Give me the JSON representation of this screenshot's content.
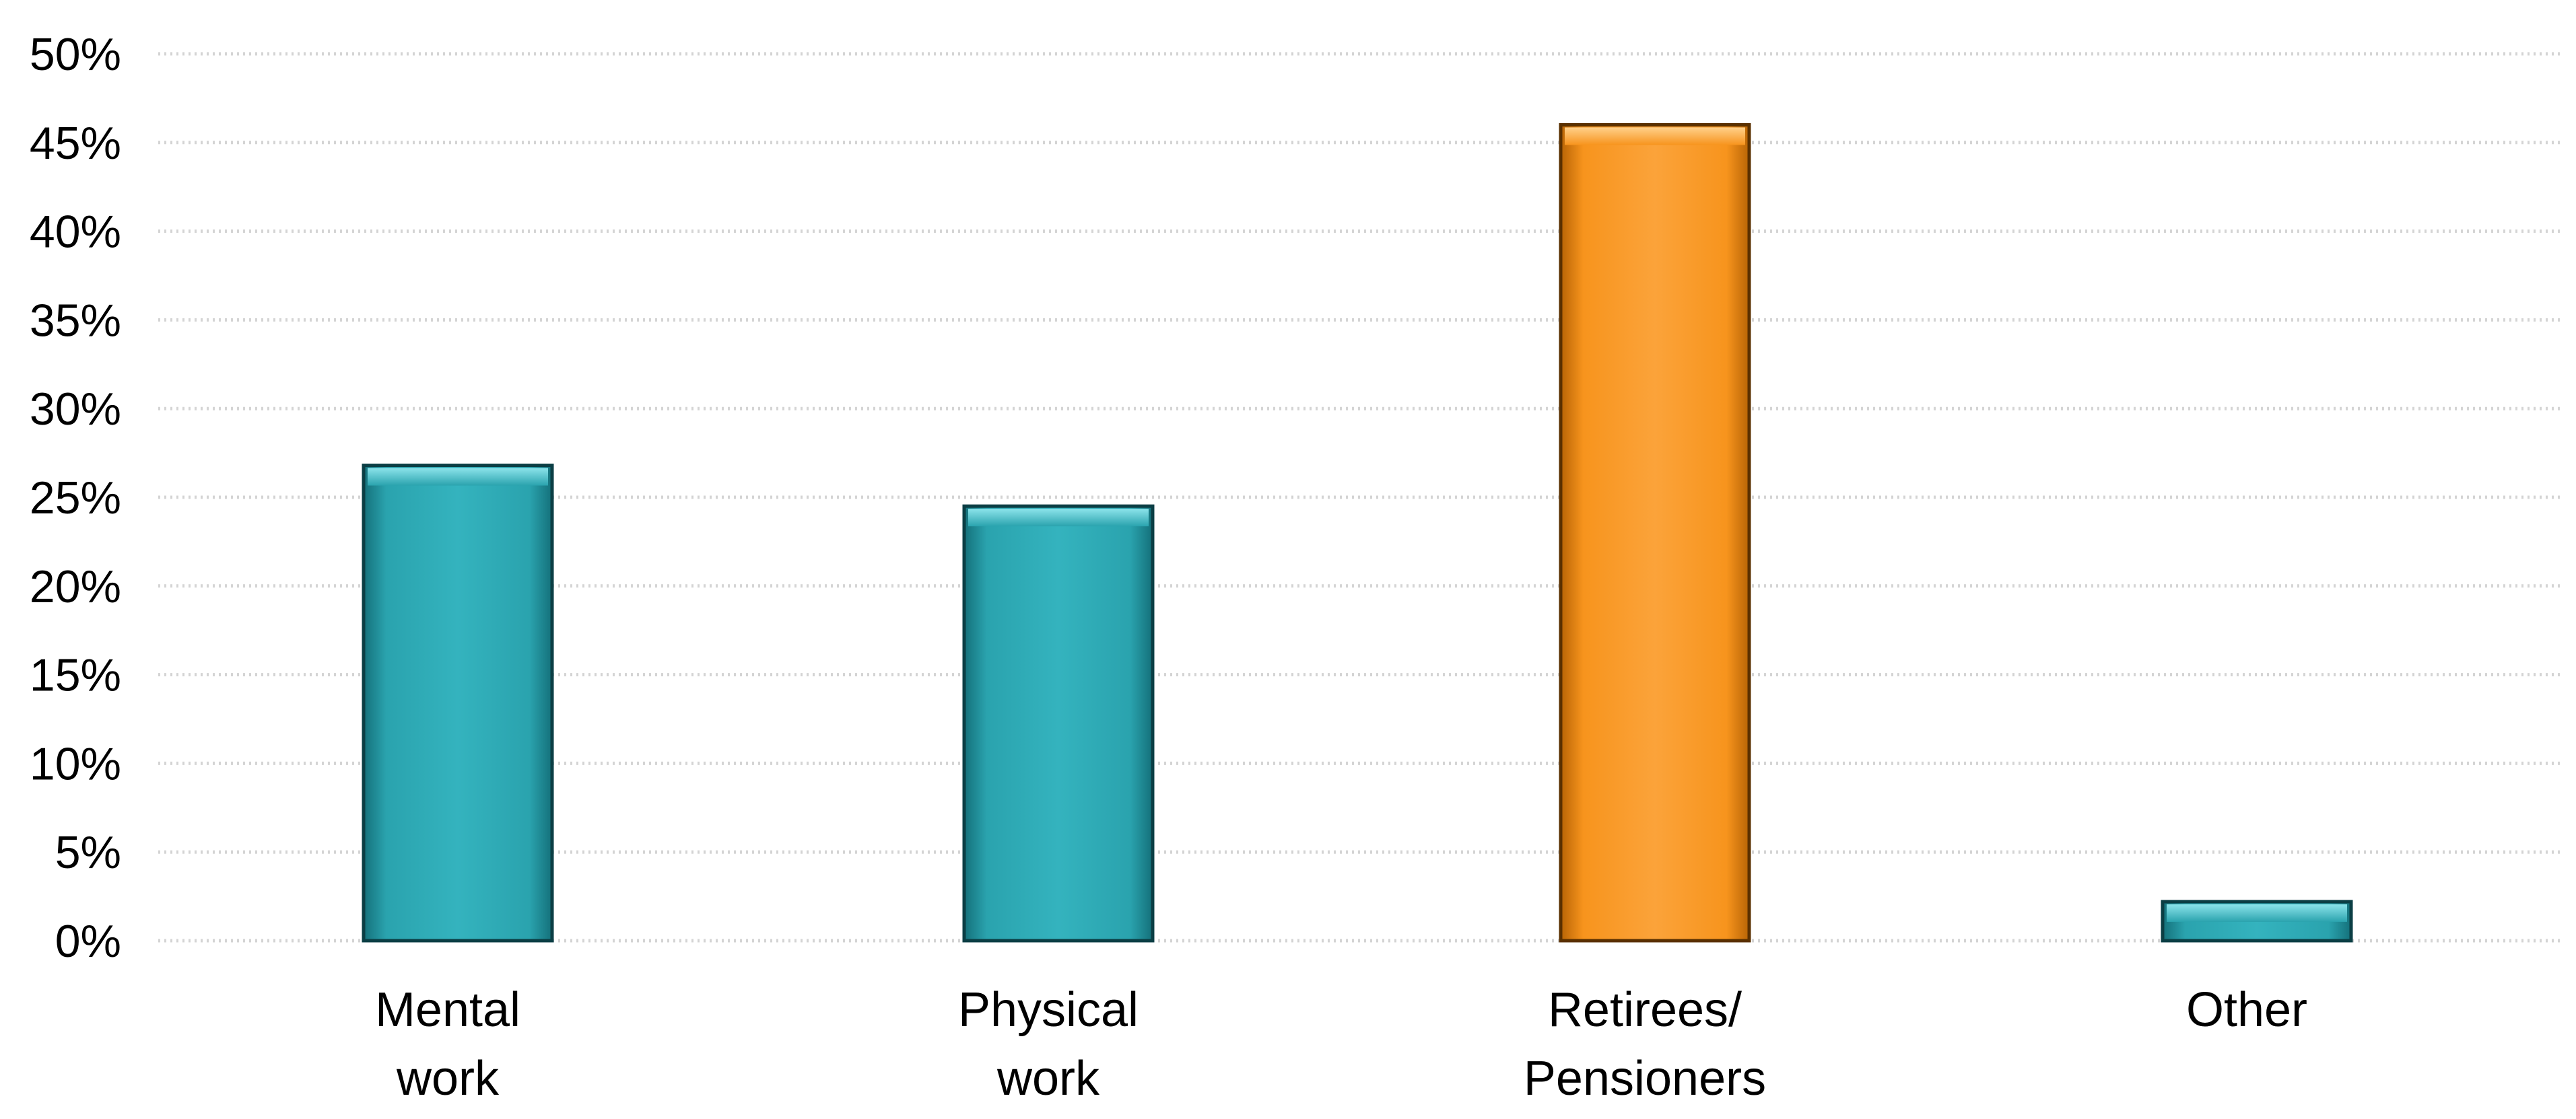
{
  "chart_data": {
    "type": "bar",
    "title": "",
    "xlabel": "",
    "ylabel": "",
    "categories": [
      [
        "Mental",
        "work"
      ],
      [
        "Physical",
        "work"
      ],
      [
        "Retirees/",
        "Pensioners"
      ],
      [
        "Other"
      ]
    ],
    "values": [
      26.8,
      24.5,
      46.0,
      2.2
    ],
    "bar_colors": [
      "#2aa3ae",
      "#2aa3ae",
      "#f7941d",
      "#2aa3ae"
    ],
    "ylim": [
      0,
      50
    ],
    "yticks": [
      0,
      5,
      10,
      15,
      20,
      25,
      30,
      35,
      40,
      45,
      50
    ],
    "ytick_labels": [
      "0%",
      "5%",
      "10%",
      "15%",
      "20%",
      "25%",
      "30%",
      "35%",
      "40%",
      "45%",
      "50%"
    ],
    "grid": true,
    "legend": "none"
  }
}
